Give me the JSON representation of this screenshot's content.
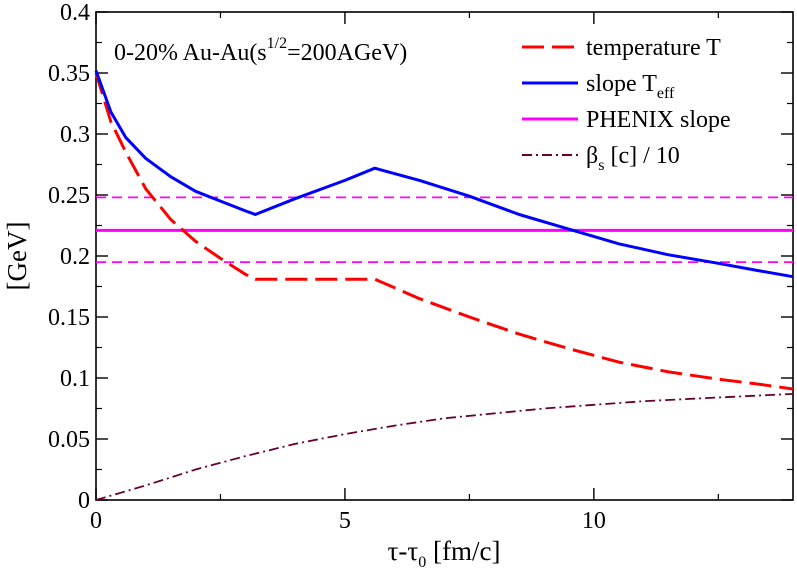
{
  "chart_data": {
    "type": "line",
    "title": "",
    "annotation": {
      "prefix": "0-20% Au-Au(s",
      "sup": "1/2",
      "suffix": "=200AGeV)"
    },
    "xlabel": {
      "base": "τ-τ",
      "sub": "0",
      "rest": " [fm/c]"
    },
    "ylabel": "[GeV]",
    "xlim": [
      0,
      14
    ],
    "ylim": [
      0,
      0.4
    ],
    "xticks": [
      0,
      5,
      10
    ],
    "xtick_labels": [
      "0",
      "5",
      "10"
    ],
    "yticks": [
      0,
      0.05,
      0.1,
      0.15,
      0.2,
      0.25,
      0.3,
      0.35,
      0.4
    ],
    "ytick_labels": [
      "0",
      "0.05",
      "0.1",
      "0.15",
      "0.2",
      "0.25",
      "0.3",
      "0.35",
      "0.4"
    ],
    "legend_position": "top-right",
    "series": [
      {
        "id": "temperature",
        "name": "temperature T",
        "legend": {
          "base": "temperature T",
          "sub": ""
        },
        "color": "#ff0000",
        "dash": "dashed",
        "points": [
          [
            0,
            0.35
          ],
          [
            0.3,
            0.31
          ],
          [
            0.6,
            0.285
          ],
          [
            1.0,
            0.255
          ],
          [
            1.5,
            0.23
          ],
          [
            2.0,
            0.212
          ],
          [
            2.5,
            0.198
          ],
          [
            3.0,
            0.185
          ],
          [
            3.2,
            0.181
          ],
          [
            4.0,
            0.181
          ],
          [
            5.0,
            0.181
          ],
          [
            5.6,
            0.181
          ],
          [
            6.5,
            0.165
          ],
          [
            7.5,
            0.15
          ],
          [
            8.5,
            0.136
          ],
          [
            9.5,
            0.124
          ],
          [
            10.5,
            0.113
          ],
          [
            11.5,
            0.105
          ],
          [
            12.5,
            0.099
          ],
          [
            13.3,
            0.095
          ],
          [
            14.0,
            0.091
          ]
        ]
      },
      {
        "id": "slope",
        "name": "slope T_eff",
        "legend": {
          "base": "slope T",
          "sub": "eff"
        },
        "color": "#0000ff",
        "dash": "solid",
        "points": [
          [
            0,
            0.352
          ],
          [
            0.3,
            0.318
          ],
          [
            0.6,
            0.297
          ],
          [
            1.0,
            0.28
          ],
          [
            1.5,
            0.265
          ],
          [
            2.0,
            0.253
          ],
          [
            2.5,
            0.245
          ],
          [
            3.0,
            0.237
          ],
          [
            3.2,
            0.234
          ],
          [
            4.0,
            0.247
          ],
          [
            5.0,
            0.262
          ],
          [
            5.6,
            0.272
          ],
          [
            6.5,
            0.262
          ],
          [
            7.5,
            0.249
          ],
          [
            8.5,
            0.234
          ],
          [
            9.5,
            0.222
          ],
          [
            10.5,
            0.21
          ],
          [
            11.5,
            0.201
          ],
          [
            12.5,
            0.194
          ],
          [
            13.3,
            0.188
          ],
          [
            14.0,
            0.183
          ]
        ]
      },
      {
        "id": "phenix",
        "name": "PHENIX slope",
        "legend": {
          "base": "PHENIX slope",
          "sub": ""
        },
        "color": "#ff00ff",
        "dash": "solid",
        "points": [
          [
            0,
            0.221
          ],
          [
            14,
            0.221
          ]
        ]
      },
      {
        "id": "phenix_upper",
        "name": "",
        "color": "#ff00ff",
        "dash": "short-dash",
        "points": [
          [
            0,
            0.248
          ],
          [
            14,
            0.248
          ]
        ]
      },
      {
        "id": "phenix_lower",
        "name": "",
        "color": "#ff00ff",
        "dash": "short-dash",
        "points": [
          [
            0,
            0.195
          ],
          [
            14,
            0.195
          ]
        ]
      },
      {
        "id": "beta",
        "name": "β_s [c] / 10",
        "legend": {
          "base": "β",
          "sub": "s",
          "rest": " [c]  / 10"
        },
        "color": "#660033",
        "dash": "dash-dot",
        "points": [
          [
            0,
            0.0
          ],
          [
            1,
            0.012
          ],
          [
            2,
            0.025
          ],
          [
            3,
            0.036
          ],
          [
            4,
            0.046
          ],
          [
            5,
            0.054
          ],
          [
            6,
            0.061
          ],
          [
            7,
            0.067
          ],
          [
            8,
            0.071
          ],
          [
            9,
            0.075
          ],
          [
            10,
            0.078
          ],
          [
            11,
            0.081
          ],
          [
            12,
            0.083
          ],
          [
            13,
            0.085
          ],
          [
            14,
            0.087
          ]
        ]
      }
    ]
  }
}
